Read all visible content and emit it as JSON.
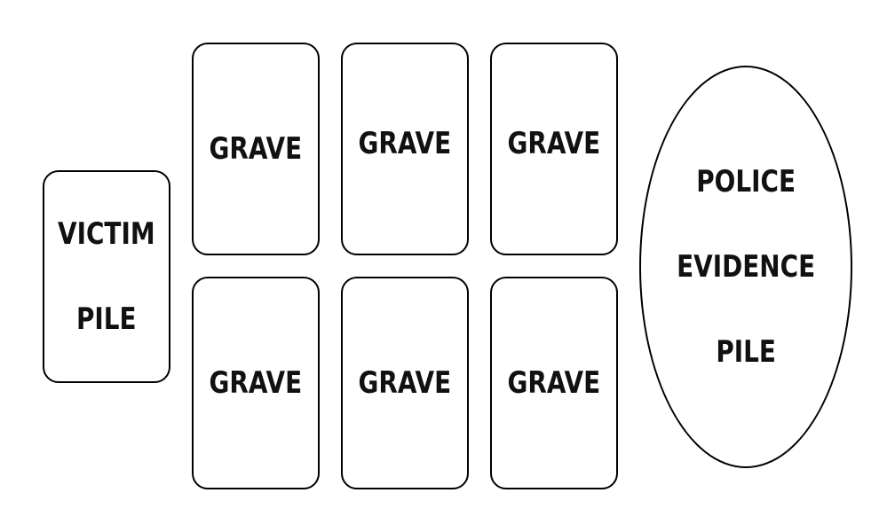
{
  "board": {
    "victim_pile": {
      "line1": "VICTIM",
      "line2": "PILE"
    },
    "graves": [
      {
        "label": "GRAVE"
      },
      {
        "label": "GRAVE"
      },
      {
        "label": "GRAVE"
      },
      {
        "label": "GRAVE"
      },
      {
        "label": "GRAVE"
      },
      {
        "label": "GRAVE"
      }
    ],
    "police_evidence_pile": {
      "line1": "POLICE",
      "line2": "EVIDENCE",
      "line3": "PILE"
    }
  }
}
